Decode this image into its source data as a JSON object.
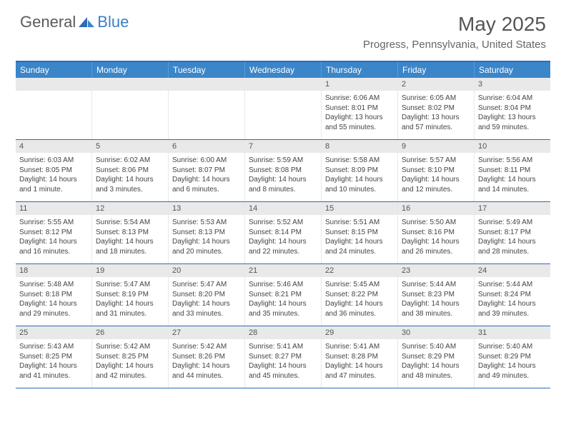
{
  "brand": {
    "part1": "General",
    "part2": "Blue"
  },
  "title": "May 2025",
  "location": "Progress, Pennsylvania, United States",
  "colors": {
    "header_bg": "#3b85c9",
    "header_border": "#2a6db8",
    "daynum_bg": "#e9e9e9",
    "text": "#444444",
    "brand_gray": "#5a5a5a",
    "brand_blue": "#3b7fc4"
  },
  "weekdays": [
    "Sunday",
    "Monday",
    "Tuesday",
    "Wednesday",
    "Thursday",
    "Friday",
    "Saturday"
  ],
  "weeks": [
    [
      {
        "n": "",
        "sr": "",
        "ss": "",
        "dl": ""
      },
      {
        "n": "",
        "sr": "",
        "ss": "",
        "dl": ""
      },
      {
        "n": "",
        "sr": "",
        "ss": "",
        "dl": ""
      },
      {
        "n": "",
        "sr": "",
        "ss": "",
        "dl": ""
      },
      {
        "n": "1",
        "sr": "Sunrise: 6:06 AM",
        "ss": "Sunset: 8:01 PM",
        "dl": "Daylight: 13 hours and 55 minutes."
      },
      {
        "n": "2",
        "sr": "Sunrise: 6:05 AM",
        "ss": "Sunset: 8:02 PM",
        "dl": "Daylight: 13 hours and 57 minutes."
      },
      {
        "n": "3",
        "sr": "Sunrise: 6:04 AM",
        "ss": "Sunset: 8:04 PM",
        "dl": "Daylight: 13 hours and 59 minutes."
      }
    ],
    [
      {
        "n": "4",
        "sr": "Sunrise: 6:03 AM",
        "ss": "Sunset: 8:05 PM",
        "dl": "Daylight: 14 hours and 1 minute."
      },
      {
        "n": "5",
        "sr": "Sunrise: 6:02 AM",
        "ss": "Sunset: 8:06 PM",
        "dl": "Daylight: 14 hours and 3 minutes."
      },
      {
        "n": "6",
        "sr": "Sunrise: 6:00 AM",
        "ss": "Sunset: 8:07 PM",
        "dl": "Daylight: 14 hours and 6 minutes."
      },
      {
        "n": "7",
        "sr": "Sunrise: 5:59 AM",
        "ss": "Sunset: 8:08 PM",
        "dl": "Daylight: 14 hours and 8 minutes."
      },
      {
        "n": "8",
        "sr": "Sunrise: 5:58 AM",
        "ss": "Sunset: 8:09 PM",
        "dl": "Daylight: 14 hours and 10 minutes."
      },
      {
        "n": "9",
        "sr": "Sunrise: 5:57 AM",
        "ss": "Sunset: 8:10 PM",
        "dl": "Daylight: 14 hours and 12 minutes."
      },
      {
        "n": "10",
        "sr": "Sunrise: 5:56 AM",
        "ss": "Sunset: 8:11 PM",
        "dl": "Daylight: 14 hours and 14 minutes."
      }
    ],
    [
      {
        "n": "11",
        "sr": "Sunrise: 5:55 AM",
        "ss": "Sunset: 8:12 PM",
        "dl": "Daylight: 14 hours and 16 minutes."
      },
      {
        "n": "12",
        "sr": "Sunrise: 5:54 AM",
        "ss": "Sunset: 8:13 PM",
        "dl": "Daylight: 14 hours and 18 minutes."
      },
      {
        "n": "13",
        "sr": "Sunrise: 5:53 AM",
        "ss": "Sunset: 8:13 PM",
        "dl": "Daylight: 14 hours and 20 minutes."
      },
      {
        "n": "14",
        "sr": "Sunrise: 5:52 AM",
        "ss": "Sunset: 8:14 PM",
        "dl": "Daylight: 14 hours and 22 minutes."
      },
      {
        "n": "15",
        "sr": "Sunrise: 5:51 AM",
        "ss": "Sunset: 8:15 PM",
        "dl": "Daylight: 14 hours and 24 minutes."
      },
      {
        "n": "16",
        "sr": "Sunrise: 5:50 AM",
        "ss": "Sunset: 8:16 PM",
        "dl": "Daylight: 14 hours and 26 minutes."
      },
      {
        "n": "17",
        "sr": "Sunrise: 5:49 AM",
        "ss": "Sunset: 8:17 PM",
        "dl": "Daylight: 14 hours and 28 minutes."
      }
    ],
    [
      {
        "n": "18",
        "sr": "Sunrise: 5:48 AM",
        "ss": "Sunset: 8:18 PM",
        "dl": "Daylight: 14 hours and 29 minutes."
      },
      {
        "n": "19",
        "sr": "Sunrise: 5:47 AM",
        "ss": "Sunset: 8:19 PM",
        "dl": "Daylight: 14 hours and 31 minutes."
      },
      {
        "n": "20",
        "sr": "Sunrise: 5:47 AM",
        "ss": "Sunset: 8:20 PM",
        "dl": "Daylight: 14 hours and 33 minutes."
      },
      {
        "n": "21",
        "sr": "Sunrise: 5:46 AM",
        "ss": "Sunset: 8:21 PM",
        "dl": "Daylight: 14 hours and 35 minutes."
      },
      {
        "n": "22",
        "sr": "Sunrise: 5:45 AM",
        "ss": "Sunset: 8:22 PM",
        "dl": "Daylight: 14 hours and 36 minutes."
      },
      {
        "n": "23",
        "sr": "Sunrise: 5:44 AM",
        "ss": "Sunset: 8:23 PM",
        "dl": "Daylight: 14 hours and 38 minutes."
      },
      {
        "n": "24",
        "sr": "Sunrise: 5:44 AM",
        "ss": "Sunset: 8:24 PM",
        "dl": "Daylight: 14 hours and 39 minutes."
      }
    ],
    [
      {
        "n": "25",
        "sr": "Sunrise: 5:43 AM",
        "ss": "Sunset: 8:25 PM",
        "dl": "Daylight: 14 hours and 41 minutes."
      },
      {
        "n": "26",
        "sr": "Sunrise: 5:42 AM",
        "ss": "Sunset: 8:25 PM",
        "dl": "Daylight: 14 hours and 42 minutes."
      },
      {
        "n": "27",
        "sr": "Sunrise: 5:42 AM",
        "ss": "Sunset: 8:26 PM",
        "dl": "Daylight: 14 hours and 44 minutes."
      },
      {
        "n": "28",
        "sr": "Sunrise: 5:41 AM",
        "ss": "Sunset: 8:27 PM",
        "dl": "Daylight: 14 hours and 45 minutes."
      },
      {
        "n": "29",
        "sr": "Sunrise: 5:41 AM",
        "ss": "Sunset: 8:28 PM",
        "dl": "Daylight: 14 hours and 47 minutes."
      },
      {
        "n": "30",
        "sr": "Sunrise: 5:40 AM",
        "ss": "Sunset: 8:29 PM",
        "dl": "Daylight: 14 hours and 48 minutes."
      },
      {
        "n": "31",
        "sr": "Sunrise: 5:40 AM",
        "ss": "Sunset: 8:29 PM",
        "dl": "Daylight: 14 hours and 49 minutes."
      }
    ]
  ]
}
